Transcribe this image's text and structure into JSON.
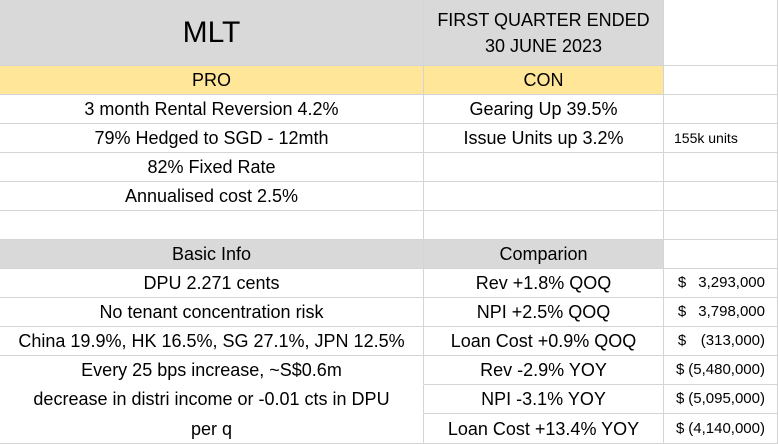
{
  "sheet": {
    "header": {
      "title": "MLT",
      "quarter_line1": "FIRST QUARTER ENDED",
      "quarter_line2": "30 JUNE 2023"
    },
    "pro_con": {
      "pro_header": "PRO",
      "con_header": "CON",
      "pros": [
        "3 month Rental Reversion 4.2%",
        "79% Hedged to SGD - 12mth",
        "82% Fixed Rate",
        "Annualised cost 2.5%"
      ],
      "cons": [
        "Gearing Up 39.5%",
        "Issue Units up 3.2%"
      ],
      "con_note": "155k units"
    },
    "info": {
      "basic_header": "Basic Info",
      "compare_header": "Comparion",
      "basic": [
        "DPU 2.271 cents",
        "No tenant concentration risk",
        "China 19.9%, HK 16.5%, SG 27.1%, JPN 12.5%",
        "Every 25 bps increase, ~S$0.6m",
        "decrease in distri income or -0.01 cts in DPU",
        "per q"
      ],
      "compare": [
        "Rev +1.8% QOQ",
        "NPI +2.5% QOQ",
        "Loan Cost +0.9% QOQ",
        "Rev -2.9% YOY",
        "NPI -3.1% YOY",
        "Loan Cost +13.4% YOY"
      ],
      "currency_symbol": "$",
      "amounts": [
        "3,293,000",
        "3,798,000",
        "(313,000)",
        "(5,480,000)",
        "(5,095,000)",
        "(4,140,000)"
      ]
    }
  }
}
